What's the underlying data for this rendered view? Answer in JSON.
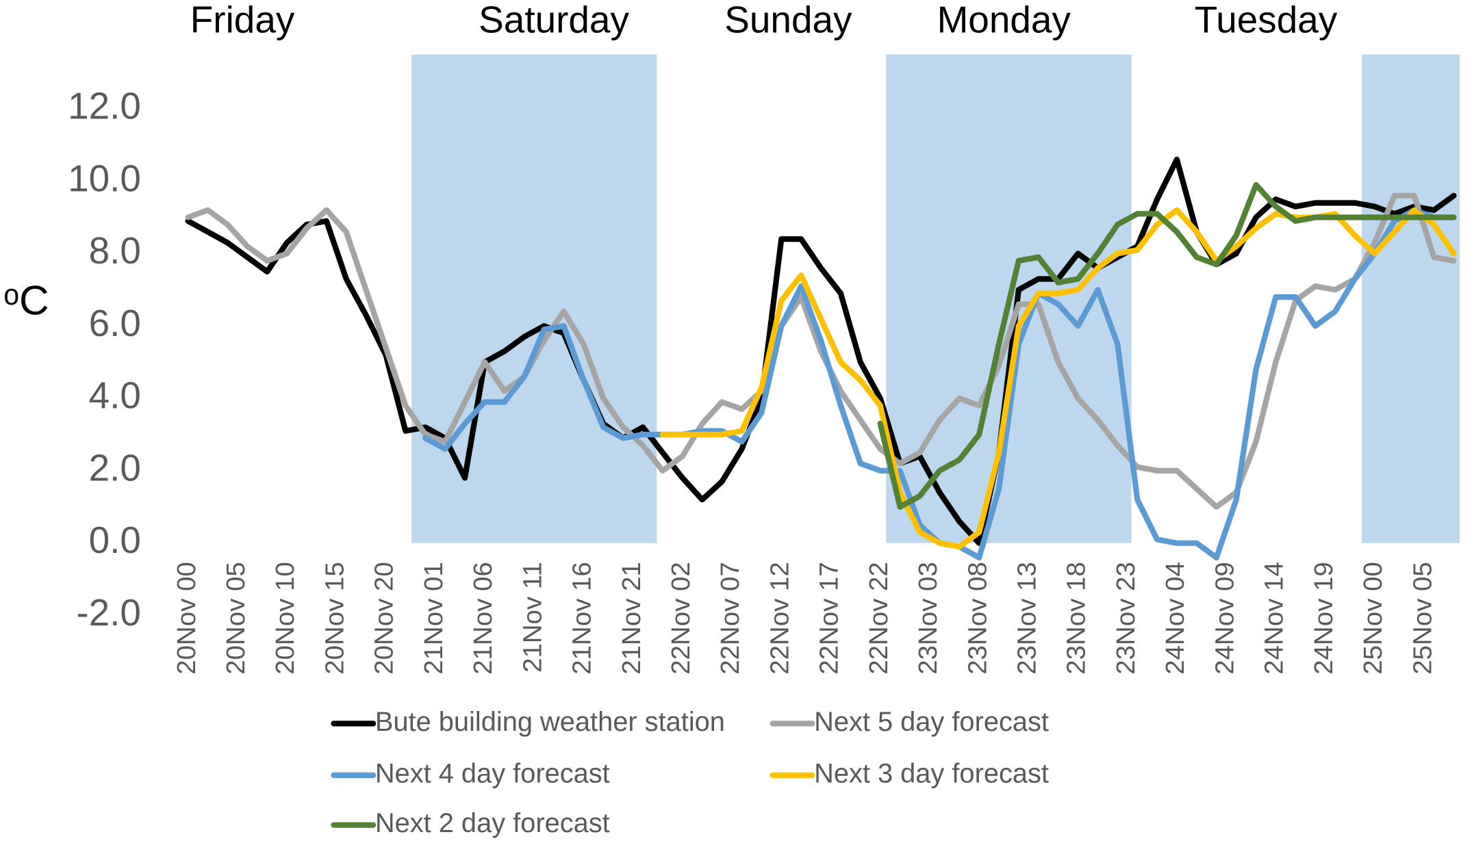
{
  "chart_data": {
    "type": "line",
    "y_label": "ᵒC",
    "day_labels": [
      "Friday",
      "Saturday",
      "Sunday",
      "Monday",
      "Tuesday"
    ],
    "shaded_bands": [
      [
        22.6,
        47.4
      ],
      [
        70.6,
        95.4
      ],
      [
        118.7,
        128.6
      ]
    ],
    "band_color": "#bdd7ee",
    "xlim": [
      0,
      129
    ],
    "ylim": [
      -2,
      13.5
    ],
    "yticks": [
      {
        "value": -2,
        "label": "-2.0"
      },
      {
        "value": 0,
        "label": "0.0"
      },
      {
        "value": 2,
        "label": "2.0"
      },
      {
        "value": 4,
        "label": "4.0"
      },
      {
        "value": 6,
        "label": "6.0"
      },
      {
        "value": 8,
        "label": "8.0"
      },
      {
        "value": 10,
        "label": "10.0"
      },
      {
        "value": 12,
        "label": "12.0"
      }
    ],
    "xticks": [
      {
        "value": 0,
        "label": "20Nov 00"
      },
      {
        "value": 5,
        "label": "20Nov 05"
      },
      {
        "value": 10,
        "label": "20Nov 10"
      },
      {
        "value": 15,
        "label": "20Nov 15"
      },
      {
        "value": 20,
        "label": "20Nov 20"
      },
      {
        "value": 25,
        "label": "21Nov 01"
      },
      {
        "value": 30,
        "label": "21Nov 06"
      },
      {
        "value": 35,
        "label": "21Nov 11"
      },
      {
        "value": 40,
        "label": "21Nov 16"
      },
      {
        "value": 45,
        "label": "21Nov 21"
      },
      {
        "value": 50,
        "label": "22Nov 02"
      },
      {
        "value": 55,
        "label": "22Nov 07"
      },
      {
        "value": 60,
        "label": "22Nov 12"
      },
      {
        "value": 65,
        "label": "22Nov 17"
      },
      {
        "value": 70,
        "label": "22Nov 22"
      },
      {
        "value": 75,
        "label": "23Nov 03"
      },
      {
        "value": 80,
        "label": "23Nov 08"
      },
      {
        "value": 85,
        "label": "23Nov 13"
      },
      {
        "value": 90,
        "label": "23Nov 18"
      },
      {
        "value": 95,
        "label": "23Nov 23"
      },
      {
        "value": 100,
        "label": "24Nov 04"
      },
      {
        "value": 105,
        "label": "24Nov 09"
      },
      {
        "value": 110,
        "label": "24Nov 14"
      },
      {
        "value": 115,
        "label": "24Nov 19"
      },
      {
        "value": 120,
        "label": "25Nov 00"
      },
      {
        "value": 125,
        "label": "25Nov 05"
      }
    ],
    "x": [
      0,
      2,
      4,
      6,
      8,
      10,
      12,
      14,
      16,
      18,
      20,
      22,
      24,
      26,
      28,
      30,
      32,
      34,
      36,
      38,
      40,
      42,
      44,
      46,
      48,
      50,
      52,
      54,
      56,
      58,
      60,
      62,
      64,
      66,
      68,
      70,
      72,
      74,
      76,
      78,
      80,
      82,
      84,
      86,
      88,
      90,
      92,
      94,
      96,
      98,
      100,
      102,
      104,
      106,
      108,
      110,
      112,
      114,
      116,
      118,
      120,
      122,
      124,
      126,
      128
    ],
    "series": [
      {
        "name": "Bute building weather station",
        "color": "#000000",
        "values": [
          8.9,
          8.6,
          8.3,
          7.9,
          7.5,
          8.3,
          8.8,
          8.9,
          7.3,
          6.3,
          5.2,
          3.1,
          3.2,
          2.9,
          1.8,
          5.0,
          5.3,
          5.7,
          6.0,
          5.8,
          4.5,
          3.3,
          2.9,
          3.2,
          2.5,
          1.8,
          1.2,
          1.7,
          2.6,
          4.0,
          8.4,
          8.4,
          7.6,
          6.9,
          5.0,
          4.0,
          2.2,
          2.4,
          1.4,
          0.6,
          0.0,
          2.5,
          7.0,
          7.3,
          7.3,
          8.0,
          7.6,
          7.9,
          8.2,
          9.5,
          10.6,
          8.6,
          7.7,
          8.0,
          9.0,
          9.5,
          9.3,
          9.4,
          9.4,
          9.4,
          9.3,
          9.1,
          9.3,
          9.2,
          9.6
        ]
      },
      {
        "name": "Next 5 day forecast",
        "color": "#a5a5a5",
        "values": [
          9.0,
          9.2,
          8.8,
          8.2,
          7.8,
          8.0,
          8.7,
          9.2,
          8.6,
          7.0,
          5.4,
          3.8,
          3.0,
          2.8,
          3.9,
          5.0,
          4.2,
          4.6,
          5.6,
          6.4,
          5.5,
          4.0,
          3.2,
          2.7,
          2.0,
          2.4,
          3.3,
          3.9,
          3.7,
          4.2,
          6.0,
          6.8,
          5.3,
          4.2,
          3.4,
          2.6,
          2.2,
          2.5,
          3.4,
          4.0,
          3.8,
          4.9,
          6.6,
          6.6,
          5.0,
          4.0,
          3.4,
          2.7,
          2.1,
          2.0,
          2.0,
          1.5,
          1.0,
          1.4,
          2.8,
          5.0,
          6.7,
          7.1,
          7.0,
          7.3,
          8.3,
          9.6,
          9.6,
          7.9,
          7.8
        ]
      },
      {
        "name": "Next 4 day forecast",
        "color": "#5b9bd5",
        "values": [
          null,
          null,
          null,
          null,
          null,
          null,
          null,
          null,
          null,
          null,
          null,
          null,
          2.9,
          2.6,
          3.3,
          3.9,
          3.9,
          4.6,
          5.9,
          6.0,
          4.5,
          3.2,
          2.9,
          3.0,
          3.0,
          3.0,
          3.1,
          3.1,
          2.8,
          3.6,
          6.0,
          7.1,
          5.6,
          3.8,
          2.2,
          2.0,
          2.0,
          0.5,
          0.0,
          -0.1,
          -0.4,
          1.5,
          5.5,
          6.9,
          6.6,
          6.0,
          7.0,
          5.5,
          1.2,
          0.1,
          0.0,
          0.0,
          -0.4,
          1.2,
          4.8,
          6.8,
          6.8,
          6.0,
          6.4,
          7.3,
          8.0,
          8.9,
          9.2,
          9.0,
          9.0
        ]
      },
      {
        "name": "Next 3 day forecast",
        "color": "#ffc000",
        "values": [
          null,
          null,
          null,
          null,
          null,
          null,
          null,
          null,
          null,
          null,
          null,
          null,
          null,
          null,
          null,
          null,
          null,
          null,
          null,
          null,
          null,
          null,
          null,
          null,
          3.0,
          3.0,
          3.0,
          3.0,
          3.1,
          4.3,
          6.7,
          7.4,
          6.2,
          5.0,
          4.5,
          3.8,
          1.4,
          0.3,
          0.0,
          -0.1,
          0.3,
          2.5,
          6.0,
          6.9,
          6.9,
          7.0,
          7.6,
          8.0,
          8.1,
          8.8,
          9.2,
          8.6,
          7.8,
          8.2,
          8.7,
          9.1,
          9.0,
          9.0,
          9.1,
          8.5,
          8.0,
          8.6,
          9.2,
          8.8,
          8.0
        ]
      },
      {
        "name": "Next 2 day forecast",
        "color": "#548235",
        "values": [
          null,
          null,
          null,
          null,
          null,
          null,
          null,
          null,
          null,
          null,
          null,
          null,
          null,
          null,
          null,
          null,
          null,
          null,
          null,
          null,
          null,
          null,
          null,
          null,
          null,
          null,
          null,
          null,
          null,
          null,
          null,
          null,
          null,
          null,
          null,
          3.3,
          1.0,
          1.3,
          2.0,
          2.3,
          3.0,
          5.5,
          7.8,
          7.9,
          7.2,
          7.3,
          8.0,
          8.8,
          9.1,
          9.1,
          8.6,
          7.9,
          7.7,
          8.5,
          9.9,
          9.3,
          8.9,
          9.0,
          9.0,
          9.0,
          9.0,
          9.0,
          9.0,
          9.0,
          9.0
        ]
      }
    ]
  }
}
